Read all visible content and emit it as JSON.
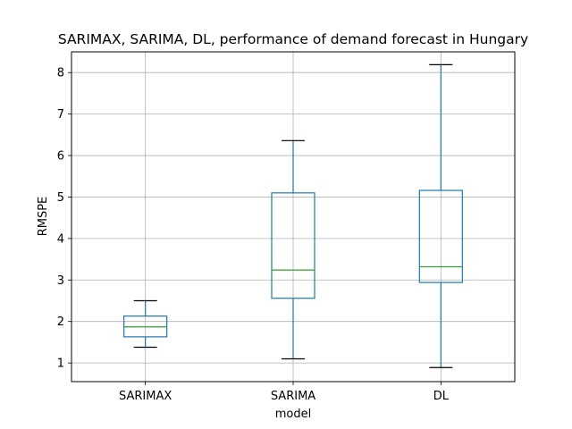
{
  "chart_data": {
    "type": "box",
    "title": "SARIMAX, SARIMA, DL, performance of demand forecast in Hungary",
    "xlabel": "model",
    "ylabel": "RMSPE",
    "ylim": [
      0.55,
      8.5
    ],
    "yticks": [
      1,
      2,
      3,
      4,
      5,
      6,
      7,
      8
    ],
    "grid": true,
    "categories": [
      "SARIMAX",
      "SARIMA",
      "DL"
    ],
    "boxes": [
      {
        "category": "SARIMAX",
        "whisker_low": 1.38,
        "q1": 1.63,
        "median": 1.87,
        "q3": 2.13,
        "whisker_high": 2.5
      },
      {
        "category": "SARIMA",
        "whisker_low": 1.1,
        "q1": 2.56,
        "median": 3.24,
        "q3": 5.1,
        "whisker_high": 6.36
      },
      {
        "category": "DL",
        "whisker_low": 0.89,
        "q1": 2.94,
        "median": 3.32,
        "q3": 5.16,
        "whisker_high": 8.19
      }
    ],
    "colors": {
      "box": "#1f77b4",
      "median": "#2ca02c",
      "cap": "#000000",
      "grid": "#b0b0b0"
    }
  }
}
